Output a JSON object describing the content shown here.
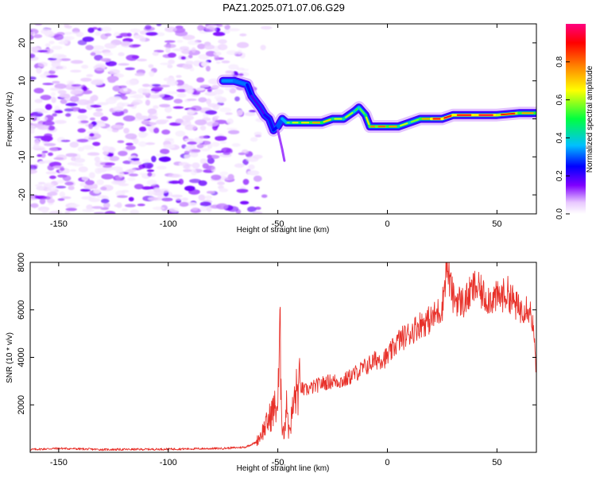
{
  "title": "PAZ1.2025.071.07.06.G29",
  "chart_data": [
    {
      "type": "heatmap",
      "xlabel": "Height of straight line (km)",
      "ylabel": "Frequency (Hz)",
      "xlim": [
        -163,
        68
      ],
      "ylim": [
        -25,
        25
      ],
      "xticks": [
        -150,
        -100,
        -50,
        0,
        50
      ],
      "yticks": [
        -20,
        -10,
        0,
        10,
        20
      ],
      "colorbar": {
        "label": "Normalized spectral amplitude",
        "range": [
          0.0,
          1.0
        ],
        "ticks": [
          0.0,
          0.2,
          0.4,
          0.6,
          0.8
        ],
        "tick_labels": [
          "0.0",
          "0.2",
          "0.4",
          "0.6",
          "0.8"
        ],
        "colormap": [
          "#ffffff",
          "#e8c8ff",
          "#8000ff",
          "#0000ff",
          "#00bfff",
          "#00ff40",
          "#ffff00",
          "#ff8000",
          "#ff0000",
          "#ff0080"
        ]
      },
      "noise_region_x": [
        -163,
        -60
      ],
      "ridge": {
        "x": [
          -75,
          -70,
          -64,
          -62,
          -58,
          -56,
          -54,
          -52,
          -50,
          -48,
          -46,
          -44,
          -40,
          -35,
          -30,
          -25,
          -20,
          -15,
          -13,
          -10,
          -8,
          -5,
          0,
          5,
          10,
          15,
          20,
          25,
          30,
          40,
          50,
          60,
          68
        ],
        "frequency": [
          10,
          10,
          9,
          6,
          3,
          1,
          0,
          -3,
          -2,
          0,
          -1,
          -1,
          -1,
          -1,
          -1,
          0,
          0,
          2,
          3,
          1,
          -2,
          -2,
          -2,
          -2,
          -1,
          0,
          0,
          0,
          1,
          1,
          1,
          1.5,
          1.5
        ],
        "amplitude": [
          0.45,
          0.5,
          0.4,
          0.3,
          0.25,
          0.3,
          0.35,
          0.3,
          0.4,
          0.45,
          0.55,
          0.6,
          0.65,
          0.7,
          0.8,
          0.6,
          0.65,
          0.55,
          0.5,
          0.6,
          0.75,
          0.8,
          0.8,
          0.7,
          0.55,
          0.6,
          0.9,
          0.95,
          0.9,
          0.95,
          0.95,
          0.8,
          0.7
        ]
      }
    },
    {
      "type": "line",
      "xlabel": "Height of straight line (km)",
      "ylabel": "SNR (10 * v/v)",
      "xlim": [
        -163,
        68
      ],
      "ylim": [
        0,
        8000
      ],
      "xticks": [
        -150,
        -100,
        -50,
        0,
        50
      ],
      "yticks": [
        2000,
        4000,
        6000,
        8000
      ],
      "color": "#e8312a",
      "series": [
        {
          "x": [
            -163,
            -150,
            -130,
            -110,
            -90,
            -75,
            -65,
            -60,
            -55,
            -52,
            -50,
            -49,
            -48,
            -47,
            -46,
            -45,
            -42,
            -40,
            -38,
            -35,
            -30,
            -25,
            -20,
            -15,
            -10,
            -5,
            0,
            5,
            10,
            15,
            20,
            25,
            27,
            30,
            35,
            40,
            45,
            50,
            55,
            60,
            64,
            66,
            68
          ],
          "y": [
            100,
            150,
            100,
            110,
            130,
            150,
            200,
            400,
            1200,
            1800,
            2000,
            4700,
            1200,
            700,
            2500,
            800,
            2400,
            2800,
            2600,
            2700,
            2900,
            3000,
            3000,
            3300,
            3600,
            3900,
            4000,
            4700,
            5000,
            5400,
            5600,
            6100,
            7900,
            6500,
            6300,
            7000,
            6500,
            6500,
            6700,
            6000,
            6200,
            5700,
            3500
          ]
        }
      ]
    }
  ]
}
